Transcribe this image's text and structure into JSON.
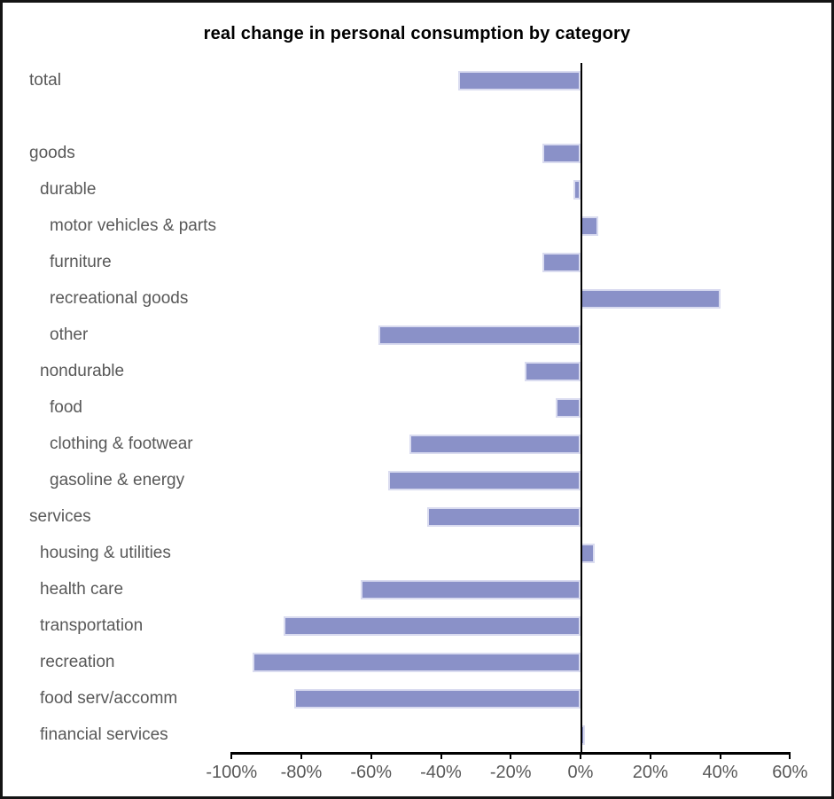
{
  "title": "real change in personal consumption by category",
  "colors": {
    "bar_fill": "#8a91c8",
    "bar_edge": "#dadcf0",
    "axis": "#000000",
    "label_text": "#585858",
    "title_text": "#000000",
    "background": "#ffffff"
  },
  "chart_data": {
    "type": "bar",
    "orientation": "horizontal",
    "title": "real change in personal consumption by category",
    "unit": "%",
    "xlim": [
      -100,
      60
    ],
    "grid": false,
    "legend": false,
    "x_ticks": [
      {
        "value": -100,
        "label": "-100%"
      },
      {
        "value": -80,
        "label": "-80%"
      },
      {
        "value": -60,
        "label": "-60%"
      },
      {
        "value": -40,
        "label": "-40%"
      },
      {
        "value": -20,
        "label": "-20%"
      },
      {
        "value": 0,
        "label": "0%"
      },
      {
        "value": 20,
        "label": "20%"
      },
      {
        "value": 40,
        "label": "40%"
      },
      {
        "value": 60,
        "label": "60%"
      }
    ],
    "categories": [
      {
        "label": "total",
        "indent": 0,
        "row": 0,
        "value": -35
      },
      {
        "label": "goods",
        "indent": 0,
        "row": 2,
        "value": -11
      },
      {
        "label": "durable",
        "indent": 1,
        "row": 3,
        "value": -2
      },
      {
        "label": "motor vehicles & parts",
        "indent": 2,
        "row": 4,
        "value": 5
      },
      {
        "label": "furniture",
        "indent": 2,
        "row": 5,
        "value": -11
      },
      {
        "label": "recreational goods",
        "indent": 2,
        "row": 6,
        "value": 40
      },
      {
        "label": "other",
        "indent": 2,
        "row": 7,
        "value": -58
      },
      {
        "label": "nondurable",
        "indent": 1,
        "row": 8,
        "value": -16
      },
      {
        "label": "food",
        "indent": 2,
        "row": 9,
        "value": -7
      },
      {
        "label": "clothing & footwear",
        "indent": 2,
        "row": 10,
        "value": -49
      },
      {
        "label": "gasoline & energy",
        "indent": 2,
        "row": 11,
        "value": -55
      },
      {
        "label": "services",
        "indent": 0,
        "row": 12,
        "value": -44
      },
      {
        "label": "housing & utilities",
        "indent": 1,
        "row": 13,
        "value": 4
      },
      {
        "label": "health care",
        "indent": 1,
        "row": 14,
        "value": -63
      },
      {
        "label": "transportation",
        "indent": 1,
        "row": 15,
        "value": -85
      },
      {
        "label": "recreation",
        "indent": 1,
        "row": 16,
        "value": -94
      },
      {
        "label": "food serv/accomm",
        "indent": 1,
        "row": 17,
        "value": -82
      },
      {
        "label": "financial services",
        "indent": 1,
        "row": 18,
        "value": 1
      }
    ]
  }
}
